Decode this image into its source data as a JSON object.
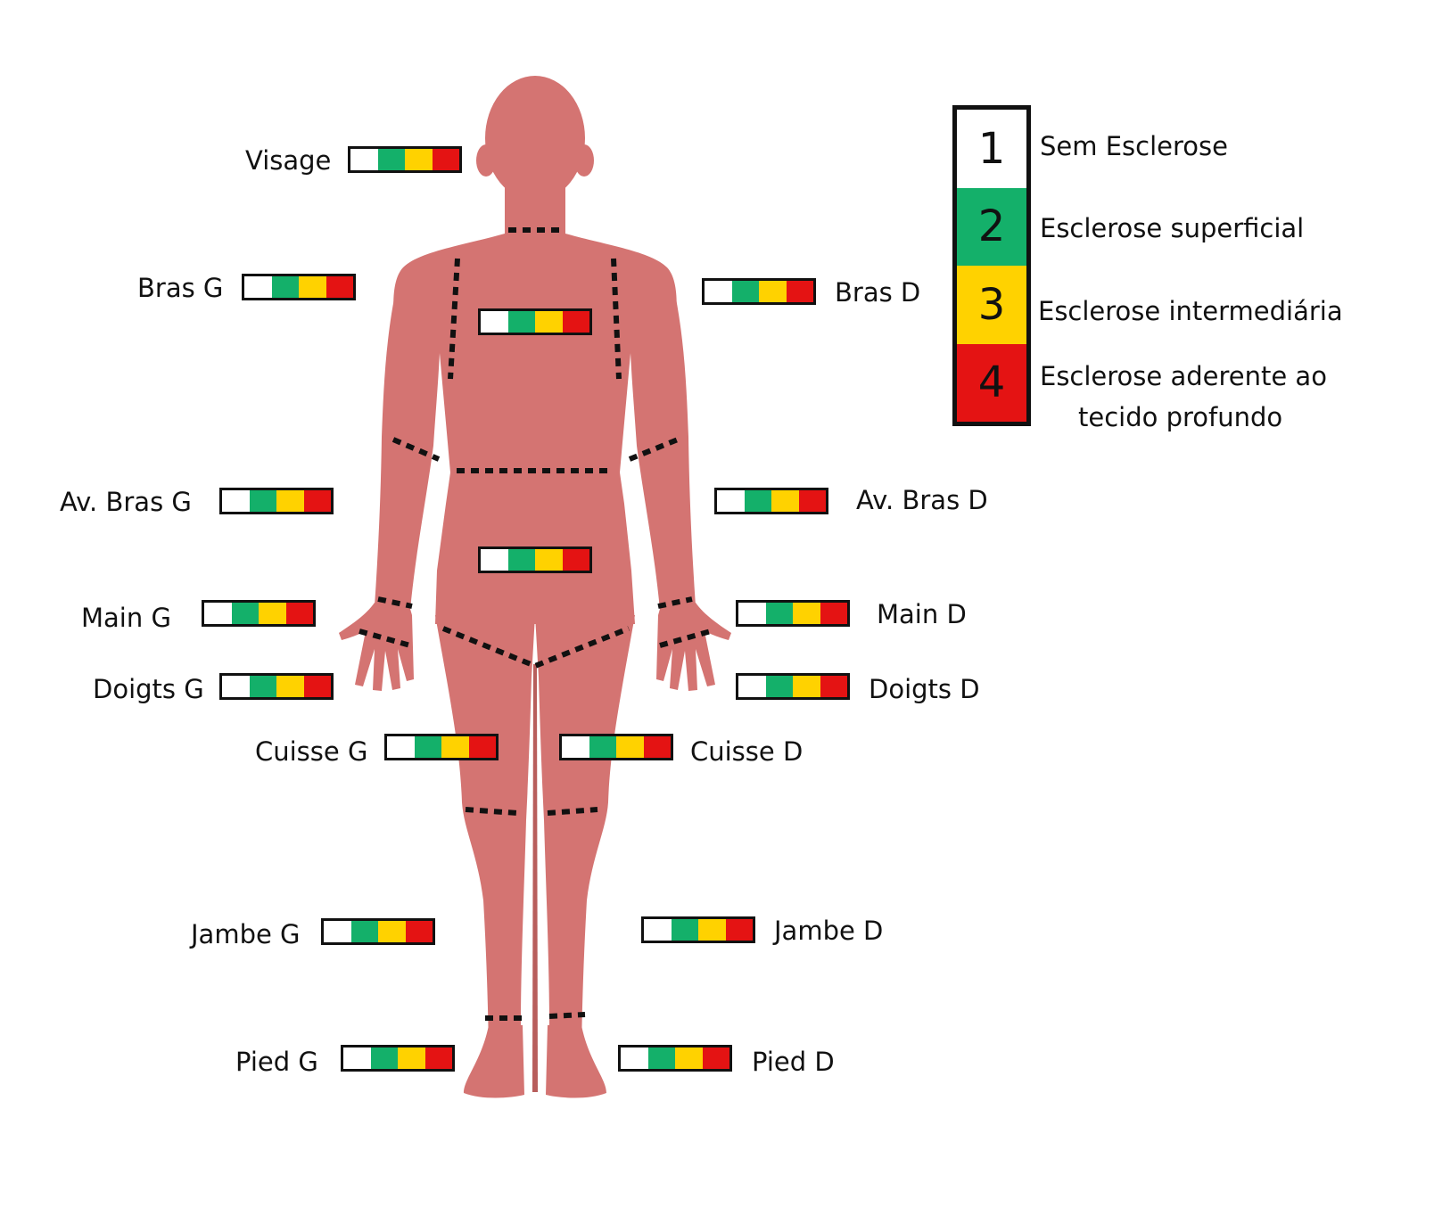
{
  "colors": {
    "body": "#d47472",
    "grade1": "#ffffff",
    "grade2": "#14b06a",
    "grade3": "#ffd200",
    "grade4": "#e41313"
  },
  "legend": [
    {
      "number": "1",
      "text": "Sem Esclerose",
      "color_key": "grade1"
    },
    {
      "number": "2",
      "text": "Esclerose superficial",
      "color_key": "grade2"
    },
    {
      "number": "3",
      "text": "Esclerose intermediária",
      "color_key": "grade3"
    },
    {
      "number": "4",
      "text_line1": "Esclerose aderente ao",
      "text_line2": "tecido profundo",
      "color_key": "grade4"
    }
  ],
  "regions": {
    "visage": "Visage",
    "bras_g": "Bras G",
    "bras_d": "Bras D",
    "av_bras_g": "Av. Bras G",
    "av_bras_d": "Av. Bras D",
    "main_g": "Main G",
    "main_d": "Main D",
    "doigts_g": "Doigts G",
    "doigts_d": "Doigts D",
    "cuisse_g": "Cuisse G",
    "cuisse_d": "Cuisse D",
    "jambe_g": "Jambe G",
    "jambe_d": "Jambe D",
    "pied_g": "Pied G",
    "pied_d": "Pied D"
  }
}
